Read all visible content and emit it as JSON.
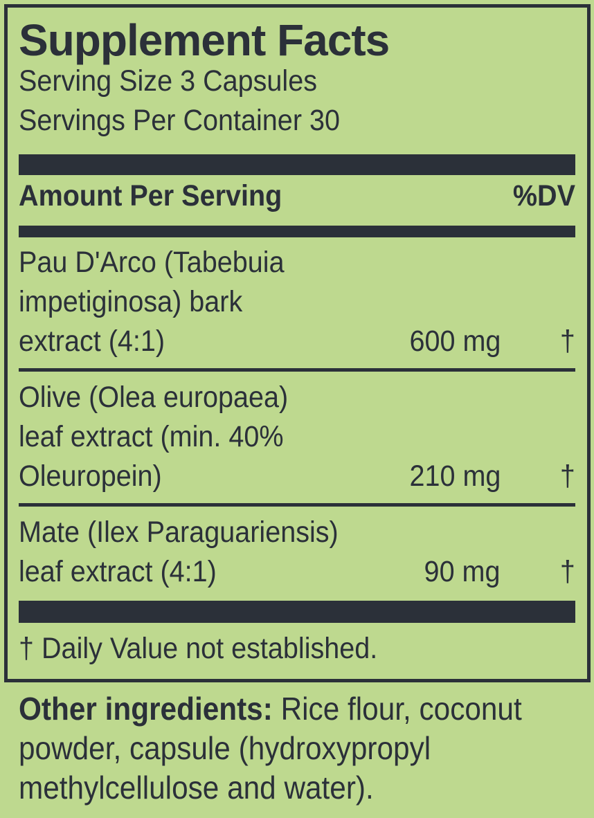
{
  "colors": {
    "background": "#bed98f",
    "ink": "#2b3039"
  },
  "panel": {
    "title": "Supplement Facts",
    "serving_size": "Serving Size 3 Capsules",
    "servings_per_container": "Servings Per Container 30",
    "columns": {
      "amount": "Amount Per Serving",
      "dv": "%DV"
    },
    "rows": [
      {
        "name": "Pau D'Arco (Tabebuia\nimpetiginosa) bark\nextract (4:1)",
        "amount": "600 mg",
        "dv": "†"
      },
      {
        "name": "Olive (Olea europaea)\nleaf extract (min. 40%\nOleuropein)",
        "amount": "210 mg",
        "dv": "†"
      },
      {
        "name": "Mate (Ilex Paraguariensis)\nleaf extract (4:1)",
        "amount": "90 mg",
        "dv": "†"
      }
    ],
    "footnote": "† Daily Value not established."
  },
  "other_ingredients": {
    "label": "Other ingredients:",
    "line1_rest": " Rice flour, coconut",
    "line2": "powder, capsule (hydroxypropyl",
    "line3": "methylcellulose and water)."
  }
}
